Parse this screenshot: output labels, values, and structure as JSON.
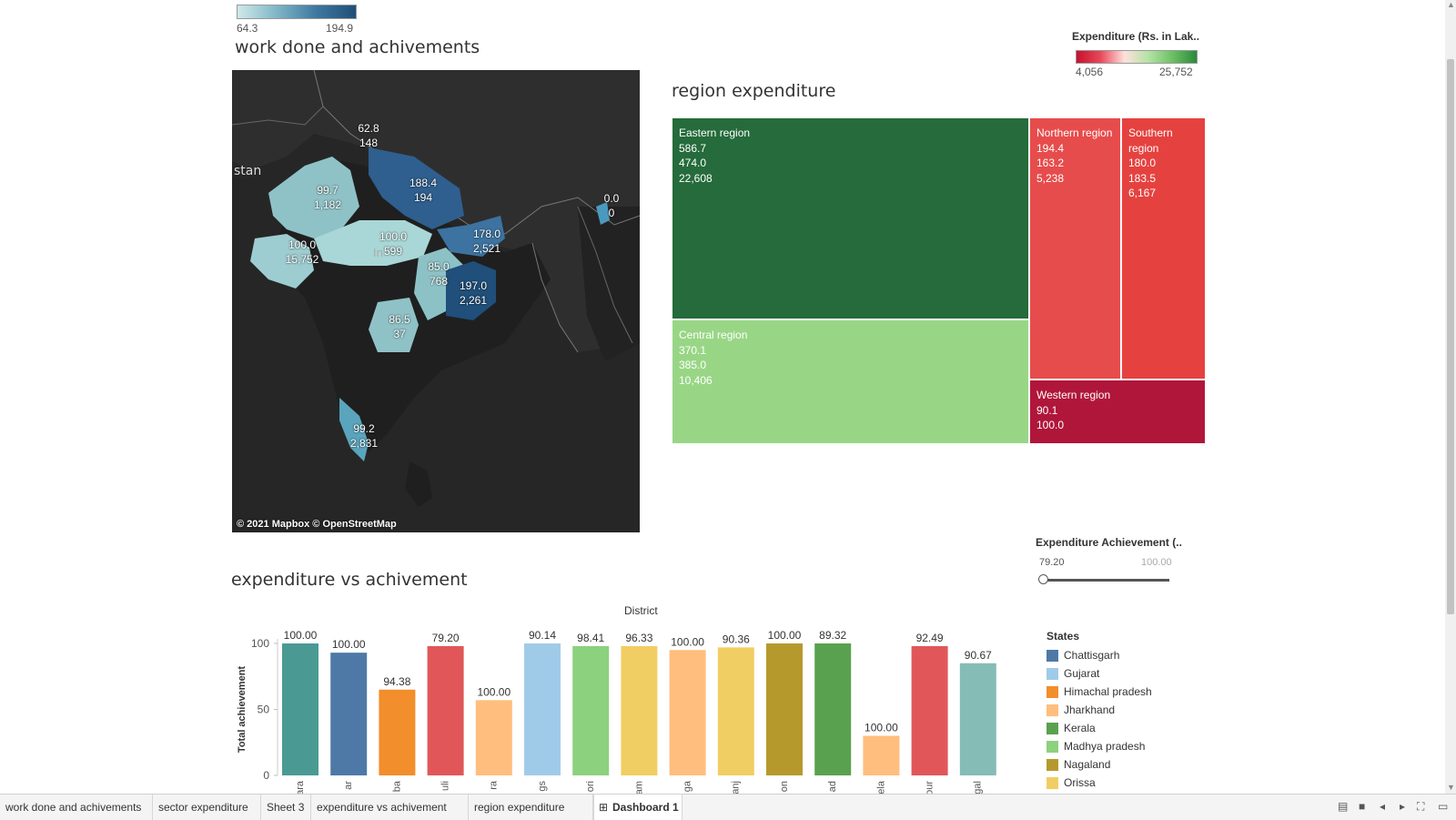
{
  "map_legend": {
    "min": "64.3",
    "max": "194.9"
  },
  "map_title": "work done and achivements",
  "map_credit": "© 2021 Mapbox © OpenStreetMap",
  "map_background_label": "stan",
  "map_labels": [
    {
      "a": "62.8",
      "b": "148"
    },
    {
      "a": "99.7",
      "b": "1,182"
    },
    {
      "a": "188.4",
      "b": "194"
    },
    {
      "a": "0.0",
      "b": "0"
    },
    {
      "a": "100.0",
      "b": "15,752"
    },
    {
      "a": "100.0",
      "b": "599"
    },
    {
      "a": "178.0",
      "b": "2,521"
    },
    {
      "a": "85.0",
      "b": "768"
    },
    {
      "a": "197.0",
      "b": "2,261"
    },
    {
      "a": "86.5",
      "b": "37"
    },
    {
      "a": "99.2",
      "b": "2,831"
    }
  ],
  "treemap_title": "region expenditure",
  "expenditure_legend": {
    "title": "Expenditure (Rs. in Lak..",
    "min": "4,056",
    "max": "25,752"
  },
  "regions": [
    {
      "name": "Eastern region",
      "v1": "586.7",
      "v2": "474.0",
      "v3": "22,608",
      "color": "#256b3b"
    },
    {
      "name": "Northern region",
      "v1": "194.4",
      "v2": "163.2",
      "v3": "5,238",
      "color": "#e74c4c"
    },
    {
      "name": "Southern region",
      "v1": "180.0",
      "v2": "183.5",
      "v3": "6,167",
      "color": "#e5423f"
    },
    {
      "name": "Central region",
      "v1": "370.1",
      "v2": "385.0",
      "v3": "10,406",
      "color": "#98d685"
    },
    {
      "name": "Western region",
      "v1": "90.1",
      "v2": "100.0",
      "v3": "",
      "color": "#b0163a"
    }
  ],
  "slider": {
    "title": "Expenditure Achievement (..",
    "min": "79.20",
    "max": "100.00"
  },
  "chart_title": "expenditure vs achivement",
  "chart_data": {
    "type": "bar",
    "xlabel": "District",
    "ylabel": "Total achievement",
    "yticks": [
      "0",
      "50",
      "100"
    ],
    "categories": [
      "ara",
      "ar",
      "ba",
      "uli",
      "ra",
      "gs",
      "ori",
      "am",
      "ga",
      "anj",
      "on",
      "ad",
      "ela",
      "our",
      "gal"
    ],
    "heights": [
      100,
      93,
      65,
      98,
      57,
      100,
      98,
      98,
      95,
      97,
      100,
      100,
      30,
      98,
      85
    ],
    "labels": [
      "100.00",
      "100.00",
      "94.38",
      "79.20",
      "100.00",
      "90.14",
      "98.41",
      "96.33",
      "100.00",
      "90.36",
      "100.00",
      "89.32",
      "100.00",
      "92.49",
      "90.67"
    ],
    "colors": [
      "#4a9a93",
      "#4e79a7",
      "#f28e2b",
      "#e15759",
      "#ffbe7d",
      "#a0cbe8",
      "#8cd17d",
      "#f1ce63",
      "#ffbe7d",
      "#f1ce63",
      "#b6992d",
      "#59a14f",
      "#ffbe7d",
      "#e15759",
      "#86bcb6"
    ],
    "ylim": [
      0,
      100
    ]
  },
  "legend": {
    "title": "States",
    "items": [
      {
        "label": "Chattisgarh",
        "color": "#4e79a7"
      },
      {
        "label": "Gujarat",
        "color": "#a0cbe8"
      },
      {
        "label": "Himachal pradesh",
        "color": "#f28e2b"
      },
      {
        "label": "Jharkhand",
        "color": "#ffbe7d"
      },
      {
        "label": "Kerala",
        "color": "#59a14f"
      },
      {
        "label": "Madhya pradesh",
        "color": "#8cd17d"
      },
      {
        "label": "Nagaland",
        "color": "#b6992d"
      },
      {
        "label": "Orissa",
        "color": "#f1ce63"
      }
    ]
  },
  "tabs": [
    "work done and achivements",
    "sector expenditure",
    "Sheet 3",
    "expenditure vs achivement",
    "region expenditure",
    "Dashboard 1"
  ],
  "tab_icon": "dashboard-grid-icon"
}
